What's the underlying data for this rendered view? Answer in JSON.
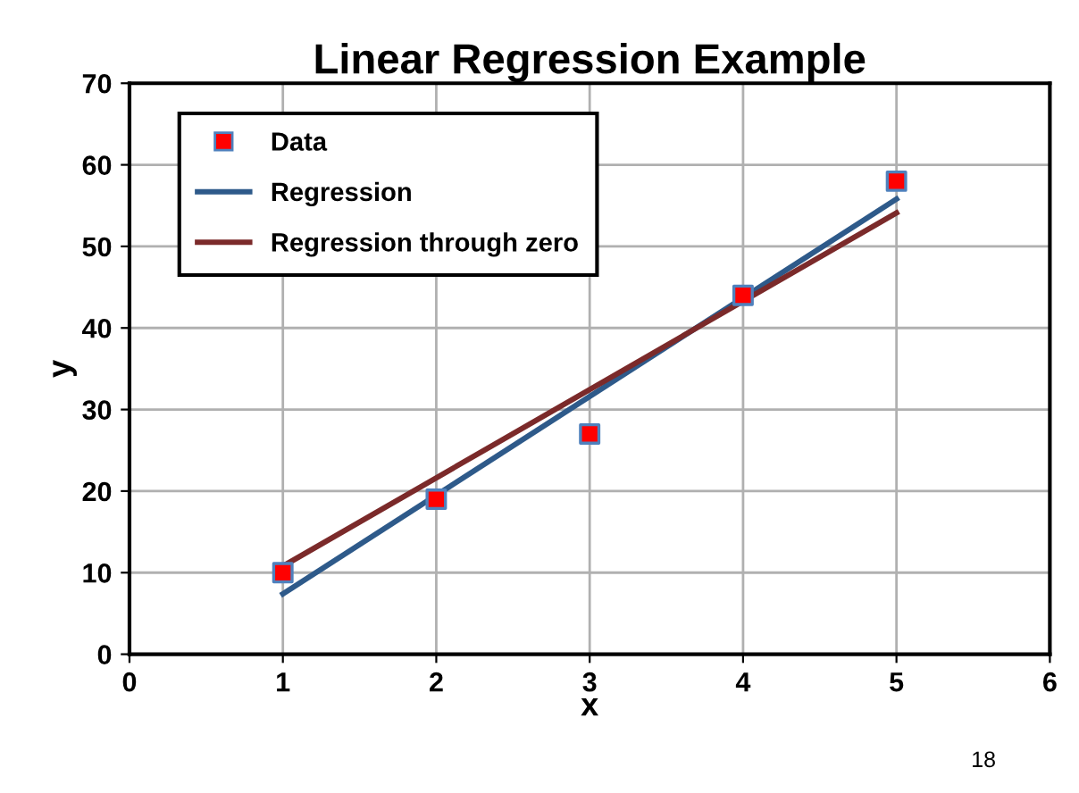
{
  "chart_data": {
    "type": "scatter",
    "title": "Linear Regression Example",
    "xlabel": "x",
    "ylabel": "y",
    "series": [
      {
        "name": "Data",
        "color": "#ff0000",
        "x": [
          1,
          2,
          3,
          4,
          5
        ],
        "values": [
          10,
          19,
          27,
          44,
          58
        ],
        "marker": "square"
      },
      {
        "name": "Regression",
        "type": "line",
        "color": "#2e5a8a",
        "x": [
          1,
          5
        ],
        "values": [
          7.4,
          55.8
        ],
        "marker": "none"
      },
      {
        "name": "Regression through zero",
        "type": "line",
        "color": "#7b2a2a",
        "x": [
          1,
          5
        ],
        "values": [
          10.8,
          54.1
        ],
        "marker": "none"
      }
    ],
    "xlim": [
      0,
      6
    ],
    "xticks": [
      0,
      1,
      2,
      3,
      4,
      5,
      6
    ],
    "ylim": [
      0,
      70
    ],
    "yticks": [
      0,
      10,
      20,
      30,
      40,
      50,
      60,
      70
    ],
    "grid": true,
    "legend": "top left",
    "annotations": [
      "18"
    ]
  }
}
